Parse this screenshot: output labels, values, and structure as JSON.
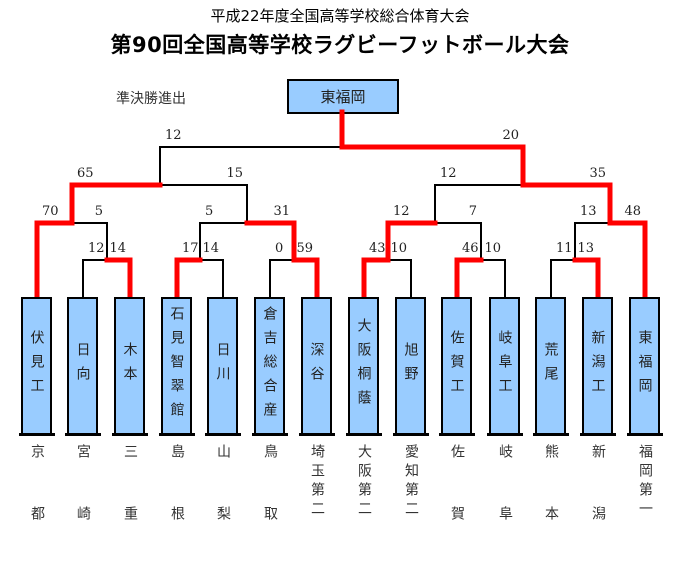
{
  "header": {
    "subtitle": "平成22年度全国高等学校総合体育大会",
    "title": "第90回全国高等学校ラグビーフットボール大会"
  },
  "semifinal_label": "準決勝進出",
  "champion": "東福岡",
  "colors": {
    "winner_line": "#ff0000",
    "box_fill": "#99ccff",
    "line": "#000000"
  },
  "teams": [
    {
      "name": "伏見工",
      "pref": "京都"
    },
    {
      "name": "日向",
      "pref": "宮崎"
    },
    {
      "name": "木本",
      "pref": "三重"
    },
    {
      "name": "石見智翠館",
      "pref": "島根"
    },
    {
      "name": "日川",
      "pref": "山梨"
    },
    {
      "name": "倉吉総合産",
      "pref": "鳥取"
    },
    {
      "name": "深谷",
      "pref": "埼玉第二"
    },
    {
      "name": "大阪桐蔭",
      "pref": "大阪第二"
    },
    {
      "name": "旭野",
      "pref": "愛知第二"
    },
    {
      "name": "佐賀工",
      "pref": "佐賀"
    },
    {
      "name": "岐阜工",
      "pref": "岐阜"
    },
    {
      "name": "荒尾",
      "pref": "熊本"
    },
    {
      "name": "新潟工",
      "pref": "新潟"
    },
    {
      "name": "東福岡",
      "pref": "福岡第一"
    }
  ],
  "bracket": {
    "scores": [
      "12",
      "20"
    ],
    "winner": "b",
    "a": {
      "scores": [
        "65",
        "15"
      ],
      "winner": "a",
      "a": {
        "scores": [
          "70",
          "5"
        ],
        "winner": "a",
        "a": 0,
        "b": {
          "scores": [
            "12",
            "14"
          ],
          "winner": "b",
          "a": 1,
          "b": 2
        }
      },
      "b": {
        "scores": [
          "5",
          "31"
        ],
        "winner": "b",
        "a": {
          "scores": [
            "17",
            "14"
          ],
          "winner": "a",
          "a": 3,
          "b": 4
        },
        "b": {
          "scores": [
            "0",
            "59"
          ],
          "winner": "b",
          "a": 5,
          "b": 6
        }
      }
    },
    "b": {
      "scores": [
        "12",
        "35"
      ],
      "winner": "b",
      "a": {
        "scores": [
          "12",
          "7"
        ],
        "winner": "a",
        "a": {
          "scores": [
            "43",
            "10"
          ],
          "winner": "a",
          "a": 7,
          "b": 8
        },
        "b": {
          "scores": [
            "46",
            "10"
          ],
          "winner": "a",
          "a": 9,
          "b": 10
        }
      },
      "b": {
        "scores": [
          "13",
          "48"
        ],
        "winner": "b",
        "a": {
          "scores": [
            "11",
            "13"
          ],
          "winner": "b",
          "a": 11,
          "b": 12
        },
        "b": 13
      }
    }
  }
}
